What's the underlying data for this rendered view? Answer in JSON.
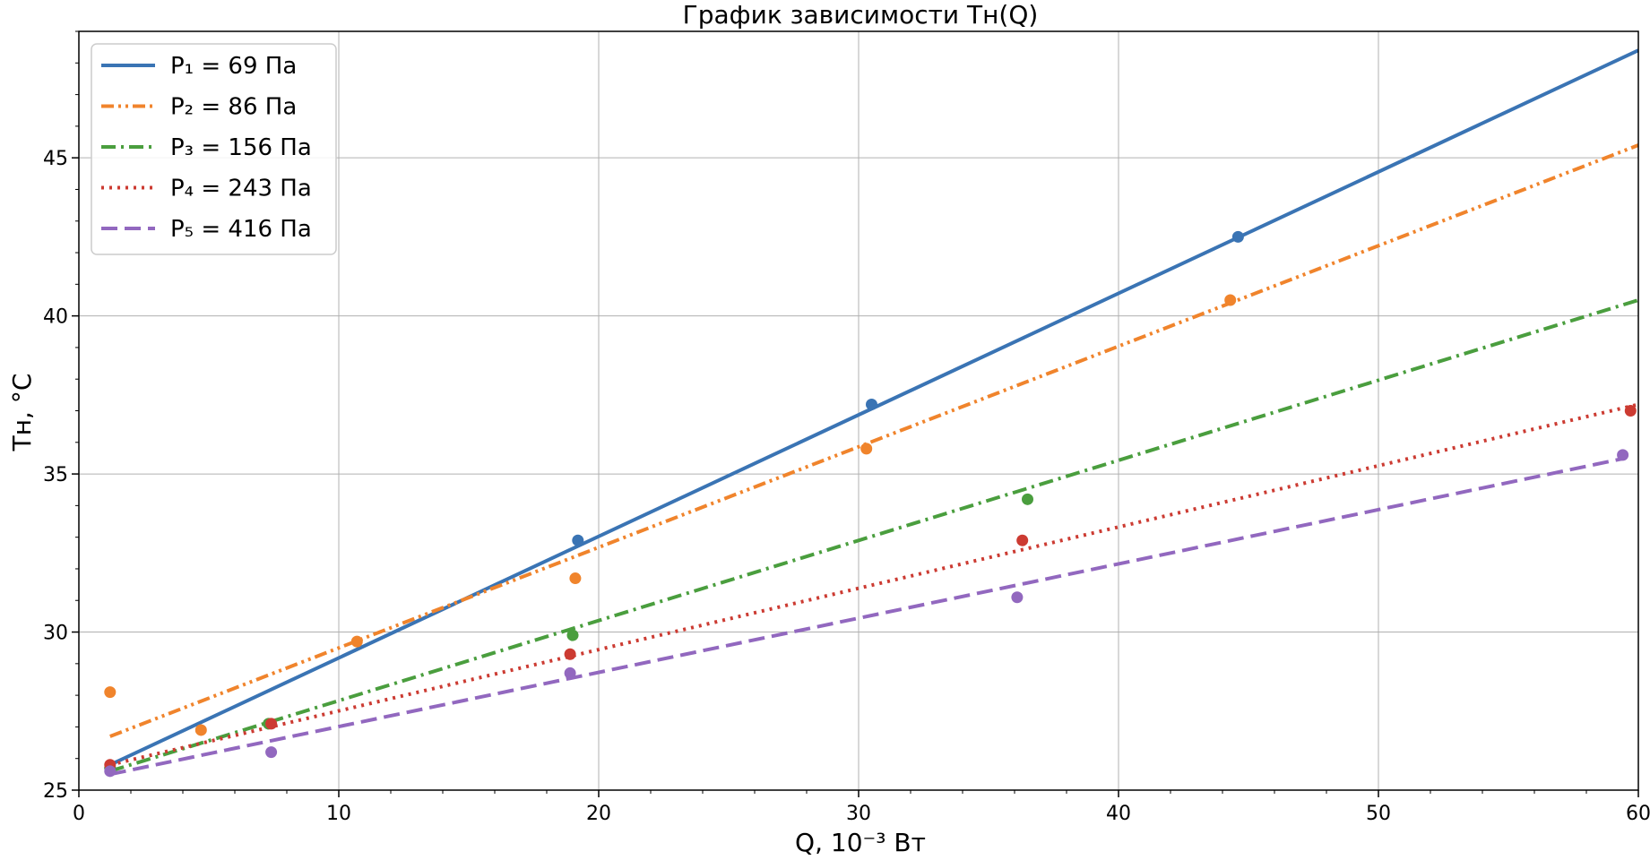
{
  "chart_data": {
    "type": "line",
    "title": "График зависимости Tн(Q)",
    "xlabel": "Q, 10⁻³ Вт",
    "ylabel": "Tн, °C",
    "xlim": [
      0,
      60
    ],
    "ylim": [
      25,
      49
    ],
    "x_ticks": [
      0,
      10,
      20,
      30,
      40,
      50,
      60
    ],
    "y_ticks": [
      25,
      30,
      35,
      40,
      45
    ],
    "grid": true,
    "legend_position": "top-left",
    "series": [
      {
        "name": "P₁ = 69 Па",
        "color": "#3a74b4",
        "dash": "solid",
        "points": [
          [
            1.2,
            25.7
          ],
          [
            19.2,
            32.9
          ],
          [
            30.5,
            37.2
          ],
          [
            44.6,
            42.5
          ]
        ],
        "fit": [
          [
            1.2,
            25.8
          ],
          [
            60,
            48.4
          ]
        ]
      },
      {
        "name": "P₂ = 86 Па",
        "color": "#f0842c",
        "dash": "dashdotdot",
        "points": [
          [
            1.2,
            28.1
          ],
          [
            4.7,
            26.9
          ],
          [
            10.7,
            29.7
          ],
          [
            19.1,
            31.7
          ],
          [
            30.3,
            35.8
          ],
          [
            44.3,
            40.5
          ]
        ],
        "fit": [
          [
            1.2,
            26.7
          ],
          [
            60,
            45.4
          ]
        ]
      },
      {
        "name": "P₃ = 156 Па",
        "color": "#4a9e3e",
        "dash": "dashdot",
        "points": [
          [
            1.2,
            25.7
          ],
          [
            7.3,
            27.1
          ],
          [
            19.0,
            29.9
          ],
          [
            36.5,
            34.2
          ]
        ],
        "fit": [
          [
            1.2,
            25.6
          ],
          [
            60,
            40.5
          ]
        ]
      },
      {
        "name": "P₄ = 243 Па",
        "color": "#cc3b32",
        "dash": "dotted",
        "points": [
          [
            1.2,
            25.8
          ],
          [
            7.4,
            27.1
          ],
          [
            18.9,
            29.3
          ],
          [
            36.3,
            32.9
          ],
          [
            59.7,
            37.0
          ]
        ],
        "fit": [
          [
            1.2,
            25.8
          ],
          [
            60,
            37.2
          ]
        ]
      },
      {
        "name": "P₅ = 416 Па",
        "color": "#9268bf",
        "dash": "dashed",
        "points": [
          [
            1.2,
            25.6
          ],
          [
            7.4,
            26.2
          ],
          [
            18.9,
            28.7
          ],
          [
            36.1,
            31.1
          ],
          [
            59.4,
            35.6
          ]
        ],
        "fit": [
          [
            1.2,
            25.5
          ],
          [
            59.5,
            35.5
          ]
        ]
      }
    ]
  }
}
